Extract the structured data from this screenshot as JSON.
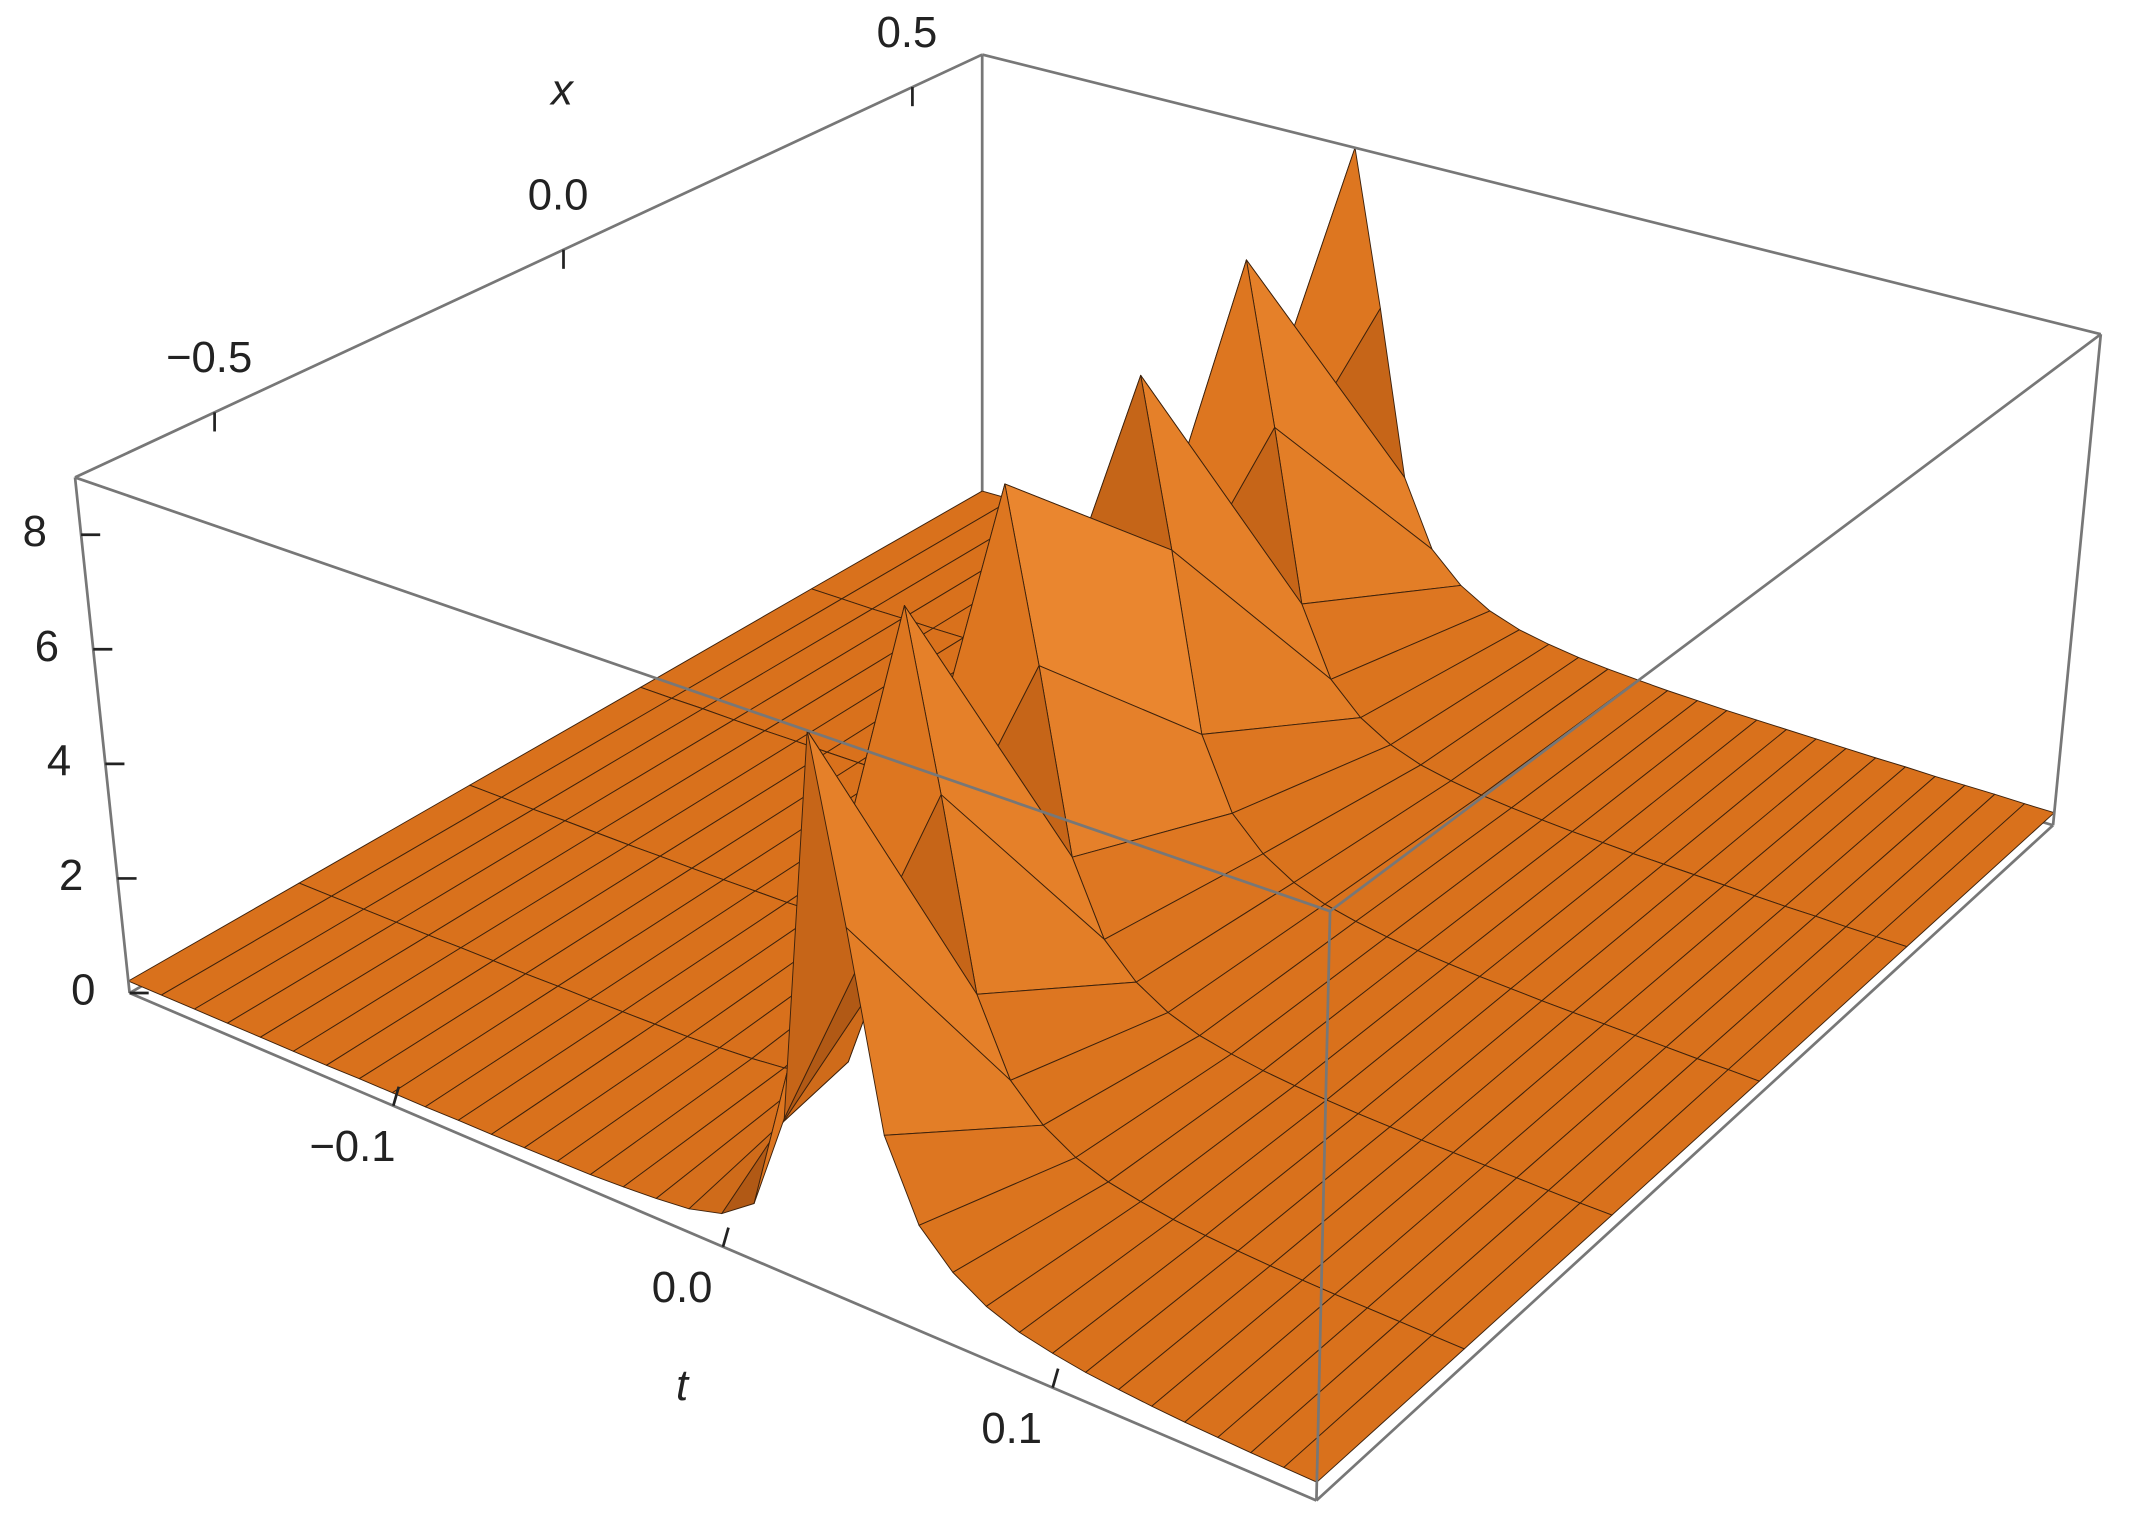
{
  "chart_data": {
    "type": "surface",
    "x_label": "x",
    "t_label": "t",
    "color": "#d9711c",
    "tlim": [
      -0.18,
      0.18
    ],
    "xlim": [
      -0.7,
      0.6
    ],
    "zlim": [
      0,
      9
    ],
    "tticks": [
      {
        "value": -0.1,
        "label": "−0.1"
      },
      {
        "value": 0,
        "label": "0.0"
      },
      0.1
    ],
    "xticks": [
      {
        "value": -0.5,
        "label": "−0.5"
      },
      {
        "value": 0,
        "label": "0.0"
      },
      0.5
    ],
    "zticks": [
      0,
      2,
      4,
      6,
      8
    ],
    "t": [
      -0.18,
      -0.17,
      -0.16,
      -0.15,
      -0.14,
      -0.13,
      -0.12,
      -0.11,
      -0.1,
      -0.09,
      -0.08,
      -0.07,
      -0.06,
      -0.05,
      -0.04,
      -0.03,
      -0.02,
      -0.01,
      0,
      0.01,
      0.02,
      0.03,
      0.04,
      0.05,
      0.06,
      0.07,
      0.08,
      0.09,
      0.1,
      0.11,
      0.12,
      0.13,
      0.14,
      0.15,
      0.16,
      0.17,
      0.18
    ],
    "x": [
      -0.7,
      -0.44,
      -0.18,
      0.08,
      0.34,
      0.6
    ],
    "z": [
      [
        0.21,
        0.21,
        0.21,
        0.21,
        0.21,
        0.21,
        0.21,
        0.22,
        0.22,
        0.22,
        0.23,
        0.23,
        0.24,
        0.25,
        0.26,
        0.29,
        0.33,
        0.39,
        0.54,
        0.93,
        2.53,
        9.0,
        6.03,
        2.91,
        1.69,
        1.16,
        0.84,
        0.65,
        0.54,
        0.46,
        0.41,
        0.37,
        0.34,
        0.32,
        0.3,
        0.29,
        0.28
      ],
      [
        0.21,
        0.21,
        0.21,
        0.21,
        0.21,
        0.22,
        0.22,
        0.22,
        0.23,
        0.23,
        0.24,
        0.25,
        0.26,
        0.29,
        0.33,
        0.39,
        0.54,
        0.93,
        2.53,
        9.0,
        6.03,
        2.91,
        1.69,
        1.16,
        0.84,
        0.65,
        0.54,
        0.46,
        0.41,
        0.37,
        0.34,
        0.32,
        0.3,
        0.29,
        0.28,
        0.27,
        0.26
      ],
      [
        0.21,
        0.21,
        0.21,
        0.22,
        0.22,
        0.22,
        0.23,
        0.23,
        0.24,
        0.25,
        0.26,
        0.29,
        0.33,
        0.39,
        0.54,
        0.93,
        2.53,
        9.0,
        6.03,
        2.91,
        1.69,
        1.16,
        0.84,
        0.65,
        0.54,
        0.46,
        0.41,
        0.37,
        0.34,
        0.32,
        0.3,
        0.29,
        0.28,
        0.27,
        0.26,
        0.25,
        0.25
      ],
      [
        0.21,
        0.21,
        0.22,
        0.22,
        0.22,
        0.23,
        0.23,
        0.24,
        0.25,
        0.26,
        0.29,
        0.33,
        0.39,
        0.54,
        0.93,
        2.53,
        9.0,
        6.03,
        2.91,
        1.69,
        1.16,
        0.84,
        0.65,
        0.54,
        0.46,
        0.41,
        0.37,
        0.34,
        0.32,
        0.3,
        0.29,
        0.28,
        0.27,
        0.26,
        0.25,
        0.25,
        0.24
      ],
      [
        0.22,
        0.22,
        0.22,
        0.23,
        0.23,
        0.24,
        0.25,
        0.26,
        0.29,
        0.33,
        0.39,
        0.54,
        0.93,
        2.53,
        9.0,
        6.03,
        2.91,
        1.69,
        1.16,
        0.84,
        0.65,
        0.54,
        0.46,
        0.41,
        0.37,
        0.34,
        0.32,
        0.3,
        0.29,
        0.28,
        0.27,
        0.26,
        0.25,
        0.25,
        0.24,
        0.24,
        0.24
      ],
      [
        0.22,
        0.23,
        0.23,
        0.24,
        0.25,
        0.26,
        0.29,
        0.33,
        0.39,
        0.54,
        0.93,
        2.53,
        9.0,
        6.03,
        2.91,
        1.69,
        1.16,
        0.84,
        0.65,
        0.54,
        0.46,
        0.41,
        0.37,
        0.34,
        0.32,
        0.3,
        0.29,
        0.28,
        0.27,
        0.26,
        0.25,
        0.25,
        0.24,
        0.24,
        0.24,
        0.23,
        0.23
      ]
    ]
  }
}
